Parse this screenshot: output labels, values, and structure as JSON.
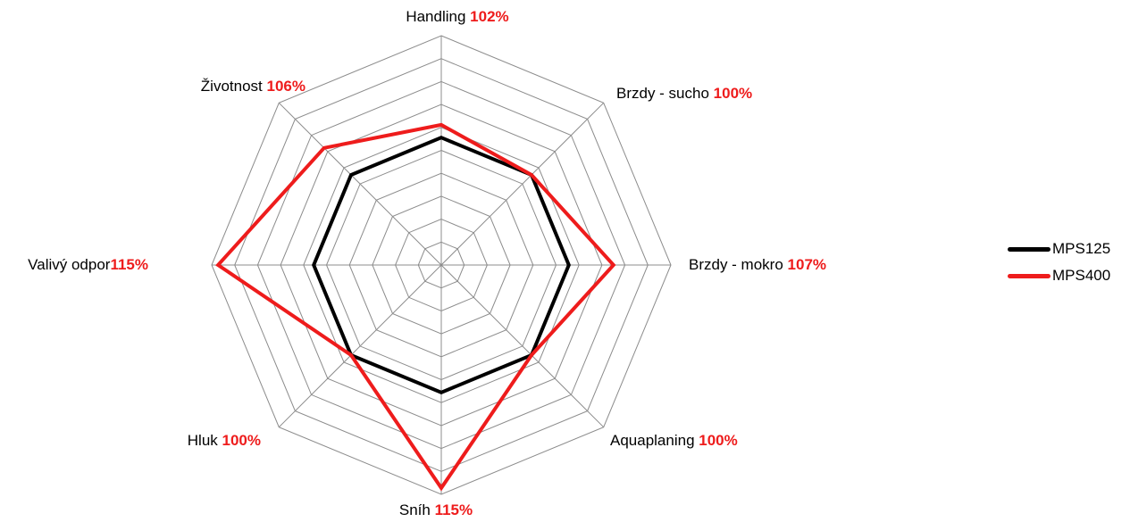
{
  "chart_data": {
    "type": "radar",
    "axes": [
      {
        "label": "Handling",
        "value_label": "102%"
      },
      {
        "label": "Brzdy - sucho",
        "value_label": "100%"
      },
      {
        "label": "Brzdy - mokro",
        "value_label": "107%"
      },
      {
        "label": "Aquaplaning",
        "value_label": "100%"
      },
      {
        "label": "Sníh",
        "value_label": "115%"
      },
      {
        "label": "Hluk",
        "value_label": "100%"
      },
      {
        "label": "Valivý odpor",
        "value_label": "115%"
      },
      {
        "label": "Životnost",
        "value_label": "106%"
      }
    ],
    "series": [
      {
        "name": "MPS125",
        "color": "#000000",
        "values": [
          100,
          100,
          100,
          100,
          100,
          100,
          100,
          100
        ]
      },
      {
        "name": "MPS400",
        "color": "#ee1c1c",
        "values": [
          102,
          100,
          107,
          100,
          115,
          100,
          115,
          106
        ]
      }
    ],
    "range": [
      80,
      116
    ],
    "rings": 10,
    "grid_color": "#8c8c8c",
    "value_label_color": "#ee1c1c",
    "legend_position": "right"
  }
}
